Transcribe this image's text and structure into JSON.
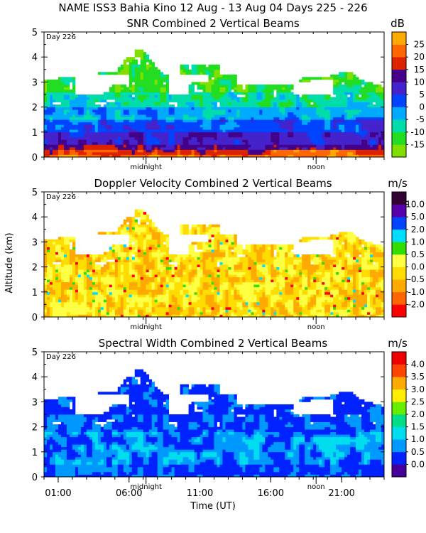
{
  "header": {
    "title": "NAME ISS3 Bahia Kino  12 Aug - 13 Aug 04 Days 225 - 226"
  },
  "chart_data": [
    {
      "type": "heatmap",
      "title": "SNR Combined 2 Vertical Beams",
      "units": "dB",
      "day_label": "Day 226",
      "ylabel": "",
      "ylim": [
        0,
        5
      ],
      "yticks": [
        0,
        1,
        2,
        3,
        4,
        5
      ],
      "time_markers": [
        "midnight",
        "noon"
      ],
      "colorbar_labels": [
        "-15",
        "-10",
        "-5",
        "0",
        "5",
        "10",
        "15",
        "20",
        "25"
      ],
      "colors": [
        "#7fe000",
        "#22dd22",
        "#00ddaa",
        "#00aaff",
        "#0044ff",
        "#4422cc",
        "#440088",
        "#dd2200",
        "#ff6600",
        "#ffaa00"
      ]
    },
    {
      "type": "heatmap",
      "title": "Doppler Velocity Combined 2 Vertical Beams",
      "units": "m/s",
      "day_label": "Day 226",
      "ylabel": "Altitude (km)",
      "ylim": [
        0,
        5
      ],
      "yticks": [
        0,
        1,
        2,
        3,
        4,
        5
      ],
      "time_markers": [
        "midnight",
        "noon"
      ],
      "colorbar_labels": [
        "-2.0",
        "-1.0",
        "-0.5",
        "0.0",
        "0.5",
        "1.0",
        "2.0",
        "5.0",
        "10.0"
      ],
      "colors": [
        "#ff0000",
        "#ff6600",
        "#ffaa00",
        "#ffdd00",
        "#ffff44",
        "#33dd00",
        "#00ddff",
        "#0044ff",
        "#5500aa",
        "#330033"
      ]
    },
    {
      "type": "heatmap",
      "title": "Spectral Width Combined 2 Vertical Beams",
      "units": "m/s",
      "day_label": "Day 226",
      "ylabel": "",
      "ylim": [
        0,
        5
      ],
      "yticks": [
        0,
        1,
        2,
        3,
        4,
        5
      ],
      "time_markers": [
        "midnight",
        "noon"
      ],
      "colorbar_labels": [
        "0.0",
        "0.5",
        "1.0",
        "1.5",
        "2.0",
        "2.5",
        "3.0",
        "3.5",
        "4.0"
      ],
      "colors": [
        "#440099",
        "#0022ff",
        "#0099ff",
        "#00ddee",
        "#00dd88",
        "#66ee00",
        "#ffee00",
        "#ffaa00",
        "#ff4400",
        "#ee0000"
      ]
    }
  ],
  "x_axis": {
    "label": "Time (UT)",
    "tick_labels": [
      "01:00",
      "06:00",
      "11:00",
      "16:00",
      "21:00"
    ],
    "tick_hours": [
      1,
      6,
      11,
      16,
      21
    ],
    "range_hours": [
      0,
      24
    ],
    "midnight_hour": 7.2,
    "noon_hour": 19.2
  }
}
